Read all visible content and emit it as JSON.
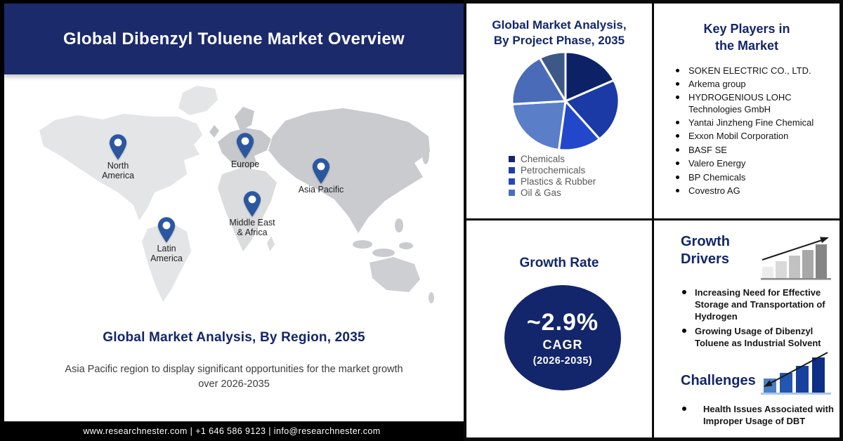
{
  "banner": {
    "title": "Global Dibenzyl Toluene Market Overview"
  },
  "region_section": {
    "heading": "Global Market Analysis, By Region, 2035",
    "subtext_line1": "Asia Pacific region to display significant opportunities for the market growth",
    "subtext_line2": "over 2026-2035"
  },
  "map": {
    "pin_color": "#2b57a0",
    "pins": [
      {
        "name": "north-america",
        "lines": [
          "North",
          "America"
        ]
      },
      {
        "name": "latin-america",
        "lines": [
          "Latin",
          "America"
        ]
      },
      {
        "name": "europe",
        "lines": [
          "Europe"
        ]
      },
      {
        "name": "middle-east-africa",
        "lines": [
          "Middle East",
          "& Africa"
        ]
      },
      {
        "name": "asia-pacific",
        "lines": [
          "Asia Pacific"
        ]
      }
    ]
  },
  "footer": {
    "text": "www.researchnester.com | +1 646 586 9123 | info@researchnester.com"
  },
  "chart_data": {
    "type": "pie",
    "title": "Global Market Analysis, By Project Phase, 2035",
    "title_line1": "Global Market Analysis,",
    "title_line2": "By Project Phase, 2035",
    "units": "percent of market, estimated from slice angles",
    "legend_position": "bottom-left",
    "segments": [
      {
        "label": "Chemicals",
        "value": 18,
        "color": "#0d2167"
      },
      {
        "label": "Petrochemicals",
        "value": 21,
        "color": "#1b3aa6"
      },
      {
        "label": "Plastics & Rubber",
        "value": 13,
        "color": "#2247cb"
      },
      {
        "label": "Oil & Gas",
        "value": 22,
        "color": "#5b7ec9"
      },
      {
        "label": "",
        "value": 18,
        "color": "#4a6cb8"
      },
      {
        "label": "",
        "value": 8,
        "color": "#3d5787"
      }
    ],
    "legend": [
      {
        "label": "Chemicals",
        "color": "#13266b"
      },
      {
        "label": "Petrochemicals",
        "color": "#1e3fa6"
      },
      {
        "label": "Plastics & Rubber",
        "color": "#2146c0"
      },
      {
        "label": "Oil & Gas",
        "color": "#4a6fbe"
      }
    ]
  },
  "key_players": {
    "title_line1": "Key Players in",
    "title_line2": "the Market",
    "items": [
      "SOKEN ELECTRIC CO., LTD.",
      "Arkema group",
      "HYDROGENIOUS LOHC Technologies GmbH",
      "Yantai Jinzheng Fine Chemical",
      "Exxon Mobil Corporation",
      "BASF SE",
      "Valero Energy",
      "BP Chemicals",
      "Covestro AG"
    ]
  },
  "growth_rate": {
    "title": "Growth Rate",
    "value": "~2.9%",
    "metric": "CAGR",
    "period": "(2026-2035)",
    "circle_color": "#13266b"
  },
  "growth_drivers": {
    "title_line1": "Growth",
    "title_line2": "Drivers",
    "items": [
      "Increasing Need for Effective Storage and Transportation of Hydrogen",
      "Growing Usage of Dibenzyl Toluene as Industrial Solvent"
    ]
  },
  "challenges": {
    "title": "Challenges",
    "items": [
      "Health Issues Associated with Improper Usage of DBT"
    ]
  },
  "colors": {
    "banner_bg": "#1b2a6b",
    "heading_navy": "#13266b",
    "footer_bg": "#000000"
  }
}
